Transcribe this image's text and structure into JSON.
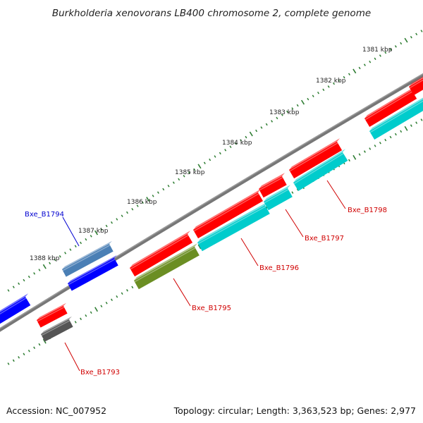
{
  "title": "Burkholderia xenovorans LB400 chromosome 2, complete genome",
  "footer": {
    "accession": "Accession: NC_007952",
    "summary": "Topology: circular; Length: 3,363,523 bp; Genes: 2,977"
  },
  "scale_labels": [
    "1381 kbp",
    "1382 kbp",
    "1383 kbp",
    "1384 kbp",
    "1385 kbp",
    "1386 kbp",
    "1387 kbp",
    "1388 kbp"
  ],
  "genes": [
    {
      "label": "Bxe_B1793",
      "color": "#d00000"
    },
    {
      "label": "Bxe_B1794",
      "color": "#0000d0"
    },
    {
      "label": "Bxe_B1795",
      "color": "#d00000"
    },
    {
      "label": "Bxe_B1796",
      "color": "#d00000"
    },
    {
      "label": "Bxe_B1797",
      "color": "#d00000"
    },
    {
      "label": "Bxe_B1798",
      "color": "#d00000"
    }
  ],
  "colors": {
    "cds": "#ff0000",
    "blue": "#0000ff",
    "steelblue": "#4a7fb5",
    "cyan": "#00cccc",
    "olive": "#6b8e23",
    "gray": "#555555",
    "backbone": "#666666",
    "tick": "#2e7d32"
  }
}
